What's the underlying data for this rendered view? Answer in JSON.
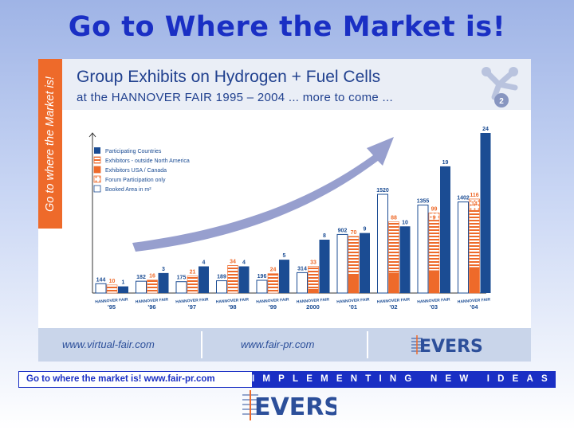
{
  "headline": "Go to Where the Market is!",
  "panel": {
    "side_text": "Go to where the Market is!",
    "title_line1": "Group Exhibits on Hydrogen + Fuel Cells",
    "title_line2": "at the HANNOVER FAIR 1995 – 2004 ... more to come ...",
    "logo_badge": "2"
  },
  "footer": {
    "url1": "www.virtual-fair.com",
    "url2": "www.fair-pr.com",
    "logo": "EVERS"
  },
  "strip": {
    "left": "Go to where the market is!   www.fair-pr.com",
    "right": "IMPLEMENTING NEW IDEAS"
  },
  "bottom_logo": "EVERS",
  "colors": {
    "headline": "#1a2fc4",
    "navy": "#1b4c93",
    "orange": "#ee6a2a",
    "arrow": "#8c95c9"
  },
  "chart_data": {
    "type": "bar",
    "title": "",
    "categories": [
      {
        "line1": "HANNOVER FAIR",
        "line2": "'95"
      },
      {
        "line1": "HANNOVER FAIR",
        "line2": "'96"
      },
      {
        "line1": "HANNOVER FAIR",
        "line2": "'97"
      },
      {
        "line1": "HANNOVER FAIR",
        "line2": "'98"
      },
      {
        "line1": "HANNOVER FAIR",
        "line2": "'99"
      },
      {
        "line1": "HANNOVER FAIR",
        "line2": "2000"
      },
      {
        "line1": "HANNOVER FAIR",
        "line2": "'01"
      },
      {
        "line1": "HANNOVER FAIR",
        "line2": "'02"
      },
      {
        "line1": "HANNOVER FAIR",
        "line2": "'03"
      },
      {
        "line1": "HANNOVER FAIR",
        "line2": "'04"
      }
    ],
    "legend": [
      {
        "key": "countries",
        "label": "Participating Countries",
        "style": "navy"
      },
      {
        "key": "exhibitors_outside",
        "label": "Exhibitors - outside North America",
        "style": "hatch"
      },
      {
        "key": "exhibitors_usa",
        "label": "Exhibitors USA / Canada",
        "style": "orange"
      },
      {
        "key": "forum",
        "label": "Forum Participation only",
        "style": "dots"
      },
      {
        "key": "area",
        "label": "Booked Area in m²",
        "style": "white"
      }
    ],
    "series": {
      "booked_area_m2": [
        144,
        182,
        175,
        189,
        196,
        314,
        902,
        1520,
        1355,
        1402
      ],
      "exhibitors_total": [
        10,
        16,
        21,
        34,
        24,
        33,
        70,
        88,
        99,
        116
      ],
      "exhibitors_usa_canada": [
        0,
        0,
        0,
        0,
        0,
        5,
        22,
        25,
        28,
        32
      ],
      "forum_participation_only": [
        null,
        null,
        null,
        null,
        null,
        null,
        null,
        null,
        9,
        14
      ],
      "participating_countries": [
        1,
        3,
        4,
        4,
        5,
        8,
        9,
        10,
        19,
        24
      ]
    },
    "legend_position": "top-left",
    "grid": false
  }
}
